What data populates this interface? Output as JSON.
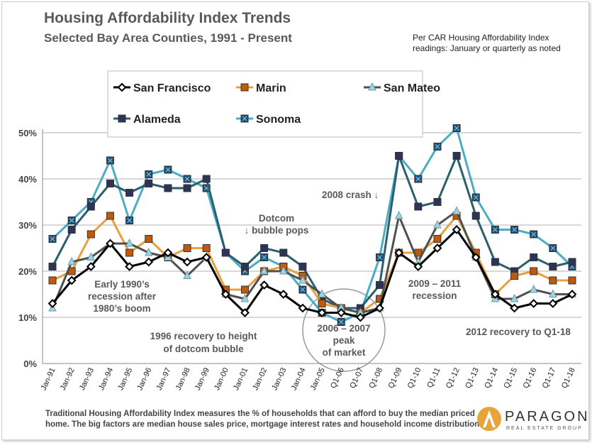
{
  "chart_data": {
    "type": "line",
    "title": "Housing Affordability Index Trends",
    "subtitle": "Selected Bay Area Counties, 1991 - Present",
    "note": [
      "Per CAR Housing Affordability Index",
      "readings: January or quarterly as noted"
    ],
    "categories": [
      "Jan-91",
      "Jan-92",
      "Jan-93",
      "Jan-94",
      "Jan-95",
      "Jan-96",
      "Jan-97",
      "Jan-98",
      "Jan-99",
      "Jan-00",
      "Jan-01",
      "Jan-02",
      "Jan-03",
      "Jan-04",
      "Jan-05",
      "Q1-06",
      "Q1-07",
      "Q1-08",
      "Q1-09",
      "Q1-10",
      "Q1-11",
      "Q1-12",
      "Q1-13",
      "Q1-14",
      "Q1-15",
      "Q1-16",
      "Q1-17",
      "Q1-18"
    ],
    "yticks": [
      "0%",
      "10%",
      "20%",
      "30%",
      "40%",
      "50%"
    ],
    "ylim": [
      0,
      50
    ],
    "grid": true,
    "legend_position": "top",
    "series": [
      {
        "name": "San Francisco",
        "color": "#000000",
        "marker": "diamond",
        "marker_fill": "#ffffff",
        "values": [
          13,
          18,
          21,
          26,
          21,
          22,
          24,
          22,
          23,
          15,
          11,
          17,
          15,
          12,
          11,
          11,
          10,
          12,
          24,
          21,
          25,
          29,
          23,
          15,
          12,
          13,
          13,
          15
        ]
      },
      {
        "name": "Marin",
        "color": "#e8a040",
        "marker": "square",
        "marker_fill": "#c05a0a",
        "values": [
          18,
          20,
          28,
          32,
          24,
          27,
          23,
          25,
          25,
          16,
          16,
          20,
          21,
          19,
          13,
          12,
          11,
          14,
          24,
          24,
          27,
          32,
          24,
          15,
          19,
          20,
          18,
          18
        ]
      },
      {
        "name": "San Mateo",
        "color": "#505050",
        "marker": "triangle",
        "marker_fill": "#9fd3e2",
        "values": [
          12,
          22,
          23,
          26,
          26,
          24,
          23,
          19,
          23,
          15,
          14,
          20,
          20,
          18,
          15,
          12,
          11,
          12,
          32,
          22,
          30,
          33,
          23,
          14,
          14,
          16,
          15,
          15
        ]
      },
      {
        "name": "Alameda",
        "color": "#2b5f6e",
        "marker": "square",
        "marker_fill": "#2e3458",
        "values": [
          21,
          29,
          34,
          39,
          37,
          39,
          38,
          38,
          40,
          24,
          21,
          25,
          24,
          21,
          14,
          12,
          12,
          17,
          45,
          34,
          35,
          45,
          32,
          22,
          20,
          23,
          21,
          22
        ]
      },
      {
        "name": "Sonoma",
        "color": "#4bacc6",
        "marker": "xsquare",
        "marker_fill": "#1f4e79",
        "values": [
          27,
          31,
          35,
          44,
          31,
          41,
          42,
          40,
          38,
          24,
          20,
          23,
          21,
          16,
          11,
          9,
          11,
          23,
          45,
          40,
          47,
          51,
          36,
          29,
          29,
          28,
          25,
          21
        ]
      }
    ],
    "annotations": {
      "early90s": [
        "Early 1990’s",
        "recession after",
        "1980’s boom"
      ],
      "recovery96": [
        "1996 recovery to height",
        "of dotcom bubble"
      ],
      "dotcom": [
        "Dotcom",
        "↓ bubble pops"
      ],
      "peak": [
        "2006 – 2007",
        "peak",
        "of market"
      ],
      "crash": "2008 crash ↓",
      "recession09": [
        "2009 – 2011",
        "recession"
      ],
      "recovery12": "2012 recovery  to Q1-18"
    }
  },
  "footer": [
    "Traditional Housing Affordability Index measures the % of households that can afford to buy the median priced",
    "home. The big factors are median house sales price, mortgage interest rates and household income distribution."
  ],
  "logo": {
    "name": "PARAGON",
    "sub": "REAL ESTATE GROUP"
  }
}
